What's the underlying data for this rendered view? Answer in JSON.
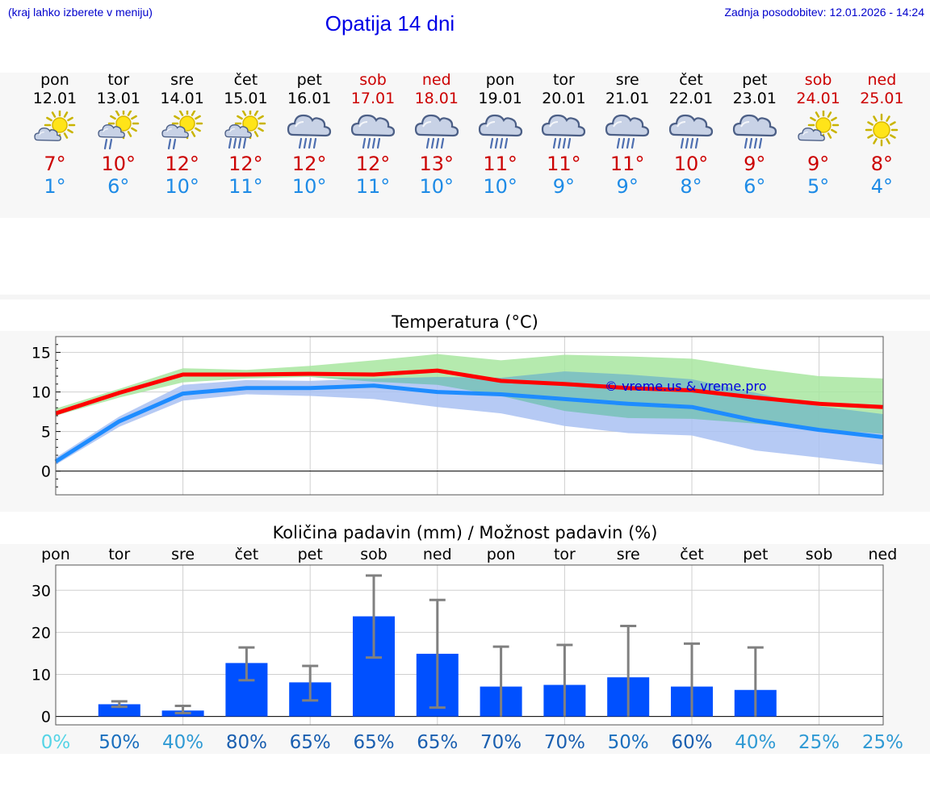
{
  "header": {
    "hint": "(kraj lahko izberete v meniju)",
    "title": "Opatija 14 dni",
    "updated": "Zadnja posodobitev: 12.01.2026 - 14:24"
  },
  "days": [
    {
      "name": "pon",
      "date": "12.01",
      "max": "7°",
      "min": "1°",
      "icon": "partly-cloudy-sun-icon",
      "weekend": false
    },
    {
      "name": "tor",
      "date": "13.01",
      "max": "10°",
      "min": "6°",
      "icon": "sun-cloud-light-rain-icon",
      "weekend": false
    },
    {
      "name": "sre",
      "date": "14.01",
      "max": "12°",
      "min": "10°",
      "icon": "sun-cloud-light-rain-icon",
      "weekend": false
    },
    {
      "name": "čet",
      "date": "15.01",
      "max": "12°",
      "min": "11°",
      "icon": "sun-cloud-rain-icon",
      "weekend": false
    },
    {
      "name": "pet",
      "date": "16.01",
      "max": "12°",
      "min": "10°",
      "icon": "cloud-rain-icon",
      "weekend": false
    },
    {
      "name": "sob",
      "date": "17.01",
      "max": "12°",
      "min": "11°",
      "icon": "cloud-rain-icon",
      "weekend": true
    },
    {
      "name": "ned",
      "date": "18.01",
      "max": "13°",
      "min": "10°",
      "icon": "cloud-rain-icon",
      "weekend": true
    },
    {
      "name": "pon",
      "date": "19.01",
      "max": "11°",
      "min": "10°",
      "icon": "cloud-rain-icon",
      "weekend": false
    },
    {
      "name": "tor",
      "date": "20.01",
      "max": "11°",
      "min": "9°",
      "icon": "cloud-rain-icon",
      "weekend": false
    },
    {
      "name": "sre",
      "date": "21.01",
      "max": "11°",
      "min": "9°",
      "icon": "cloud-rain-icon",
      "weekend": false
    },
    {
      "name": "čet",
      "date": "22.01",
      "max": "10°",
      "min": "8°",
      "icon": "cloud-rain-icon",
      "weekend": false
    },
    {
      "name": "pet",
      "date": "23.01",
      "max": "9°",
      "min": "6°",
      "icon": "cloud-rain-icon",
      "weekend": false
    },
    {
      "name": "sob",
      "date": "24.01",
      "max": "9°",
      "min": "5°",
      "icon": "partly-cloudy-sun-icon",
      "weekend": true
    },
    {
      "name": "ned",
      "date": "25.01",
      "max": "8°",
      "min": "4°",
      "icon": "sun-icon",
      "weekend": true
    }
  ],
  "colors": {
    "max_line": "#ff0000",
    "min_line": "#1e8cff",
    "max_band": "#a8e6a0",
    "min_band": "#a9c1f2",
    "bar": "#0050ff",
    "error": "#808080",
    "weekend_text": "#cc0000",
    "max_text": "#cc0000",
    "min_text": "#1e8be6"
  },
  "chart_data": [
    {
      "type": "line",
      "title": "Temperatura (°C)",
      "watermark": "© vreme.us & vreme.pro",
      "ylim": [
        -3,
        17
      ],
      "yticks": [
        0,
        5,
        10,
        15
      ],
      "x": [
        0,
        1,
        2,
        3,
        4,
        5,
        6,
        7,
        8,
        9,
        10,
        11,
        12,
        13
      ],
      "series": [
        {
          "name": "max",
          "values": [
            7.3,
            9.9,
            12.2,
            12.2,
            12.3,
            12.2,
            12.7,
            11.4,
            11.0,
            10.5,
            10.2,
            9.3,
            8.5,
            8.1
          ],
          "band_low": [
            7.0,
            9.3,
            11.2,
            11.7,
            11.9,
            11.3,
            10.9,
            9.5,
            7.6,
            6.7,
            6.6,
            6.0,
            5.3,
            4.7
          ],
          "band_high": [
            7.9,
            10.4,
            13.0,
            12.8,
            13.3,
            14.0,
            14.8,
            14.0,
            14.7,
            14.5,
            14.2,
            13.0,
            12.0,
            11.7
          ]
        },
        {
          "name": "min",
          "values": [
            1.2,
            6.3,
            9.8,
            10.5,
            10.5,
            10.8,
            10.0,
            9.7,
            9.1,
            8.5,
            8.1,
            6.4,
            5.2,
            4.3
          ],
          "band_low": [
            0.8,
            5.6,
            8.9,
            9.7,
            9.5,
            9.1,
            8.1,
            7.3,
            5.7,
            4.8,
            4.5,
            2.6,
            1.7,
            0.8
          ],
          "band_high": [
            1.7,
            6.9,
            10.9,
            11.5,
            11.4,
            11.7,
            11.9,
            11.8,
            12.6,
            12.2,
            11.6,
            9.9,
            8.2,
            7.2
          ]
        }
      ]
    },
    {
      "type": "bar",
      "title": "Količina padavin (mm) / Možnost padavin (%)",
      "categories": [
        "pon",
        "tor",
        "sre",
        "čet",
        "pet",
        "sob",
        "ned",
        "pon",
        "tor",
        "sre",
        "čet",
        "pet",
        "sob",
        "ned"
      ],
      "ylim": [
        -2,
        36
      ],
      "yticks": [
        0,
        10,
        20,
        30
      ],
      "values": [
        0,
        2.9,
        1.4,
        12.7,
        8.1,
        23.8,
        14.9,
        7.1,
        7.5,
        9.3,
        7.1,
        6.3,
        0,
        0
      ],
      "err_low": [
        0,
        2.3,
        0.8,
        8.6,
        3.8,
        14.0,
        2.1,
        0,
        0,
        0,
        0,
        0,
        0,
        0
      ],
      "err_high": [
        0,
        3.6,
        2.5,
        16.4,
        12.0,
        33.5,
        27.7,
        16.6,
        17.0,
        21.5,
        17.3,
        16.4,
        0,
        0
      ],
      "probabilities": [
        "0%",
        "50%",
        "40%",
        "80%",
        "65%",
        "65%",
        "65%",
        "70%",
        "70%",
        "50%",
        "60%",
        "40%",
        "25%",
        "25%"
      ]
    }
  ]
}
